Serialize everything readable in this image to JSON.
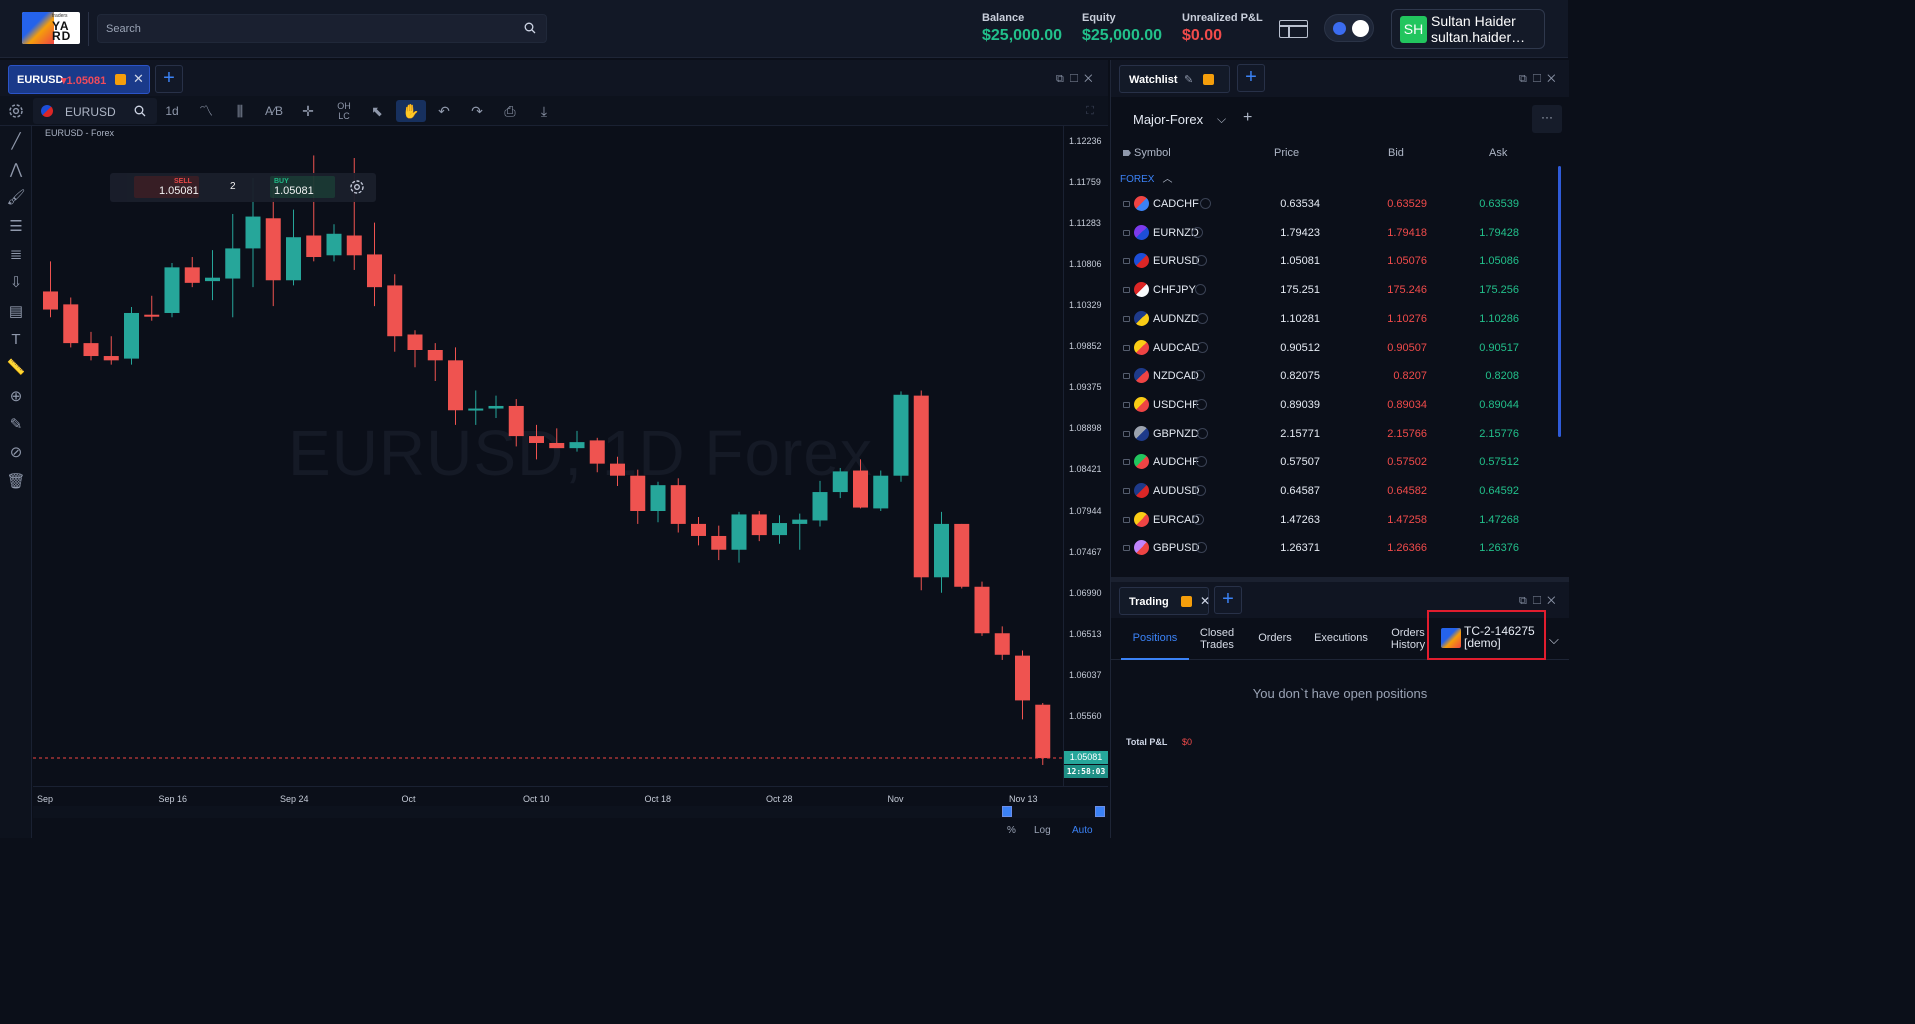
{
  "header": {
    "search_placeholder": "Search",
    "balance_label": "Balance",
    "balance_value": "$25,000.00",
    "equity_label": "Equity",
    "equity_value": "$25,000.00",
    "pnl_label": "Unrealized P&L",
    "pnl_value": "$0.00",
    "logo_text": "YARD",
    "logo_small": "traders"
  },
  "user": {
    "initials": "SH",
    "name": "Sultan Haider",
    "email": "sultan.haider…"
  },
  "chart_tab": {
    "symbol": "EURUSD",
    "price": "▾1.05081"
  },
  "toolbar": {
    "symbol": "EURUSD",
    "interval": "1d"
  },
  "chart": {
    "caption": "EURUSD - Forex",
    "watermark": "EURUSD, 1D Forex"
  },
  "trade_widget": {
    "sell_label": "SELL",
    "sell_price": "1.05081",
    "qty": "2",
    "buy_label": "BUY",
    "buy_price": "1.05081"
  },
  "chart_data": {
    "type": "candlestick",
    "symbol": "EURUSD",
    "interval": "1D",
    "current_price": 1.05081,
    "countdown": "12:58:03",
    "y_ticks": [
      "1.12236",
      "1.11759",
      "1.11283",
      "1.10806",
      "1.10329",
      "1.09852",
      "1.09375",
      "1.08898",
      "1.08421",
      "1.07944",
      "1.07467",
      "1.06990",
      "1.06513",
      "1.06037",
      "1.05560"
    ],
    "ylim": [
      1.05081,
      1.12236
    ],
    "x_ticks": [
      "Sep",
      "Sep 16",
      "Sep 24",
      "Oct",
      "Oct 10",
      "Oct 18",
      "Oct 28",
      "Nov",
      "Nov 13"
    ],
    "candles": [
      {
        "o": 1.105,
        "h": 1.1085,
        "l": 1.102,
        "c": 1.1029
      },
      {
        "o": 1.1035,
        "h": 1.1043,
        "l": 1.0985,
        "c": 1.099
      },
      {
        "o": 1.099,
        "h": 1.1003,
        "l": 1.097,
        "c": 1.0975
      },
      {
        "o": 1.0975,
        "h": 1.0998,
        "l": 1.0965,
        "c": 1.097
      },
      {
        "o": 1.0972,
        "h": 1.1032,
        "l": 1.0965,
        "c": 1.1025
      },
      {
        "o": 1.1023,
        "h": 1.1045,
        "l": 1.1016,
        "c": 1.1022
      },
      {
        "o": 1.1025,
        "h": 1.1083,
        "l": 1.102,
        "c": 1.1078
      },
      {
        "o": 1.1078,
        "h": 1.109,
        "l": 1.1055,
        "c": 1.106
      },
      {
        "o": 1.1062,
        "h": 1.1098,
        "l": 1.104,
        "c": 1.1066
      },
      {
        "o": 1.1065,
        "h": 1.114,
        "l": 1.102,
        "c": 1.11
      },
      {
        "o": 1.11,
        "h": 1.1182,
        "l": 1.1055,
        "c": 1.1137
      },
      {
        "o": 1.1135,
        "h": 1.1174,
        "l": 1.1033,
        "c": 1.1063
      },
      {
        "o": 1.1063,
        "h": 1.1145,
        "l": 1.1057,
        "c": 1.1113
      },
      {
        "o": 1.1115,
        "h": 1.1208,
        "l": 1.1085,
        "c": 1.109
      },
      {
        "o": 1.1092,
        "h": 1.1128,
        "l": 1.1085,
        "c": 1.1117
      },
      {
        "o": 1.1115,
        "h": 1.1205,
        "l": 1.1075,
        "c": 1.1092
      },
      {
        "o": 1.1093,
        "h": 1.113,
        "l": 1.1033,
        "c": 1.1055
      },
      {
        "o": 1.1057,
        "h": 1.107,
        "l": 1.098,
        "c": 1.0998
      },
      {
        "o": 1.1,
        "h": 1.1005,
        "l": 1.0962,
        "c": 1.0982
      },
      {
        "o": 1.0982,
        "h": 1.099,
        "l": 1.0946,
        "c": 1.097
      },
      {
        "o": 1.097,
        "h": 1.0985,
        "l": 1.0895,
        "c": 1.0912
      },
      {
        "o": 1.0912,
        "h": 1.0935,
        "l": 1.0895,
        "c": 1.0914
      },
      {
        "o": 1.0914,
        "h": 1.0929,
        "l": 1.0903,
        "c": 1.0917
      },
      {
        "o": 1.0917,
        "h": 1.0925,
        "l": 1.087,
        "c": 1.0882
      },
      {
        "o": 1.0882,
        "h": 1.0895,
        "l": 1.0855,
        "c": 1.0874
      },
      {
        "o": 1.0874,
        "h": 1.0891,
        "l": 1.087,
        "c": 1.0868
      },
      {
        "o": 1.0868,
        "h": 1.0888,
        "l": 1.0864,
        "c": 1.0875
      },
      {
        "o": 1.0877,
        "h": 1.088,
        "l": 1.084,
        "c": 1.085
      },
      {
        "o": 1.085,
        "h": 1.0858,
        "l": 1.0824,
        "c": 1.0836
      },
      {
        "o": 1.0836,
        "h": 1.0843,
        "l": 1.078,
        "c": 1.0795
      },
      {
        "o": 1.0795,
        "h": 1.0829,
        "l": 1.0782,
        "c": 1.0825
      },
      {
        "o": 1.0825,
        "h": 1.0833,
        "l": 1.077,
        "c": 1.078
      },
      {
        "o": 1.078,
        "h": 1.0788,
        "l": 1.0755,
        "c": 1.0766
      },
      {
        "o": 1.0766,
        "h": 1.0778,
        "l": 1.0738,
        "c": 1.075
      },
      {
        "o": 1.075,
        "h": 1.0794,
        "l": 1.0735,
        "c": 1.0791
      },
      {
        "o": 1.0791,
        "h": 1.0795,
        "l": 1.076,
        "c": 1.0767
      },
      {
        "o": 1.0767,
        "h": 1.079,
        "l": 1.0757,
        "c": 1.0781
      },
      {
        "o": 1.078,
        "h": 1.0792,
        "l": 1.075,
        "c": 1.0785
      },
      {
        "o": 1.0784,
        "h": 1.083,
        "l": 1.0777,
        "c": 1.0817
      },
      {
        "o": 1.0817,
        "h": 1.0845,
        "l": 1.081,
        "c": 1.0841
      },
      {
        "o": 1.0842,
        "h": 1.0855,
        "l": 1.0798,
        "c": 1.0799
      },
      {
        "o": 1.0798,
        "h": 1.0842,
        "l": 1.0795,
        "c": 1.0836
      },
      {
        "o": 1.0836,
        "h": 1.0934,
        "l": 1.0829,
        "c": 1.093
      },
      {
        "o": 1.0929,
        "h": 1.0935,
        "l": 1.0703,
        "c": 1.0718
      },
      {
        "o": 1.0718,
        "h": 1.0794,
        "l": 1.07,
        "c": 1.078
      },
      {
        "o": 1.078,
        "h": 1.078,
        "l": 1.0705,
        "c": 1.0707
      },
      {
        "o": 1.0707,
        "h": 1.0713,
        "l": 1.065,
        "c": 1.0653
      },
      {
        "o": 1.0653,
        "h": 1.0661,
        "l": 1.0622,
        "c": 1.0628
      },
      {
        "o": 1.0627,
        "h": 1.0633,
        "l": 1.0553,
        "c": 1.0575
      },
      {
        "o": 1.057,
        "h": 1.0572,
        "l": 1.05,
        "c": 1.0508
      }
    ]
  },
  "axis_footer": {
    "pct": "%",
    "log": "Log",
    "auto": "Auto"
  },
  "watchlist": {
    "tab_label": "Watchlist",
    "list_name": "Major-Forex",
    "columns": {
      "symbol": "Symbol",
      "price": "Price",
      "bid": "Bid",
      "ask": "Ask"
    },
    "group": "FOREX",
    "rows": [
      {
        "symbol": "CADCHF",
        "price": "0.63534",
        "bid": "0.63529",
        "ask": "0.63539",
        "c1": "#ef4444",
        "c2": "#3b82f6"
      },
      {
        "symbol": "EURNZD",
        "price": "1.79423",
        "bid": "1.79418",
        "ask": "1.79428",
        "c1": "#7c3aed",
        "c2": "#1d4ed8"
      },
      {
        "symbol": "EURUSD",
        "price": "1.05081",
        "bid": "1.05076",
        "ask": "1.05086",
        "c1": "#1d4ed8",
        "c2": "#dc2626"
      },
      {
        "symbol": "CHFJPY",
        "price": "175.251",
        "bid": "175.246",
        "ask": "175.256",
        "c1": "#dc2626",
        "c2": "#f8fafc"
      },
      {
        "symbol": "AUDNZD",
        "price": "1.10281",
        "bid": "1.10276",
        "ask": "1.10286",
        "c1": "#1e3a8a",
        "c2": "#facc15"
      },
      {
        "symbol": "AUDCAD",
        "price": "0.90512",
        "bid": "0.90507",
        "ask": "0.90517",
        "c1": "#facc15",
        "c2": "#ef4444"
      },
      {
        "symbol": "NZDCAD",
        "price": "0.82075",
        "bid": "0.8207",
        "ask": "0.8208",
        "c1": "#1e3a8a",
        "c2": "#ef4444"
      },
      {
        "symbol": "USDCHF",
        "price": "0.89039",
        "bid": "0.89034",
        "ask": "0.89044",
        "c1": "#facc15",
        "c2": "#ef4444"
      },
      {
        "symbol": "GBPNZD",
        "price": "2.15771",
        "bid": "2.15766",
        "ask": "2.15776",
        "c1": "#9ca3af",
        "c2": "#1e3a8a"
      },
      {
        "symbol": "AUDCHF",
        "price": "0.57507",
        "bid": "0.57502",
        "ask": "0.57512",
        "c1": "#22c55e",
        "c2": "#ef4444"
      },
      {
        "symbol": "AUDUSD",
        "price": "0.64587",
        "bid": "0.64582",
        "ask": "0.64592",
        "c1": "#1e3a8a",
        "c2": "#dc2626"
      },
      {
        "symbol": "EURCAD",
        "price": "1.47263",
        "bid": "1.47258",
        "ask": "1.47268",
        "c1": "#facc15",
        "c2": "#ef4444"
      },
      {
        "symbol": "GBPUSD",
        "price": "1.26371",
        "bid": "1.26366",
        "ask": "1.26376",
        "c1": "#c084fc",
        "c2": "#ef4444"
      }
    ]
  },
  "trading": {
    "tab_label": "Trading",
    "tabs": [
      "Positions",
      "Closed Trades",
      "Orders",
      "Executions",
      "Orders History"
    ],
    "account_id": "TC-2-146275",
    "account_type": "[demo]",
    "empty_message": "You don`t have open positions",
    "total_pl_label": "Total P&L",
    "total_pl_value": "$0"
  }
}
